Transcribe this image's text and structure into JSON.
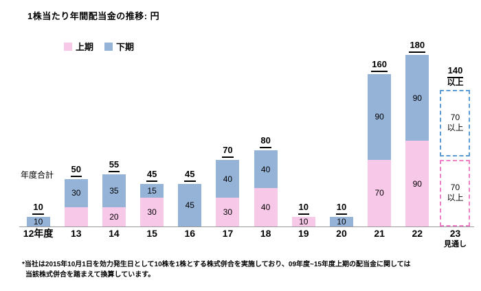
{
  "title": "1株当たり年間配当金の推移: 円",
  "legend": {
    "first_half": "上期",
    "second_half": "下期"
  },
  "y_total_label": "年度合計",
  "colors": {
    "first_half_fill": "#f8c8e8",
    "second_half_fill": "#95b3d7",
    "forecast_second_half_border": "#5b9bd5",
    "forecast_first_half_border": "#ee7ec6",
    "axis_line": "#9a9a9a"
  },
  "footnote": {
    "line1": "*当社は2015年10月1日を効力発生日として10株を1株とする株式併合を実施しており、09年度~15年度上期の配当金に関しては",
    "line2": "当該株式併合を踏まえて換算しています。"
  },
  "chart_data": {
    "type": "bar",
    "stacked": true,
    "title": "1株当たり年間配当金の推移: 円",
    "unit": "円",
    "ylim": [
      0,
      185
    ],
    "grid": false,
    "legend_position": "top-left",
    "categories": [
      "12年度",
      "13",
      "14",
      "15",
      "16",
      "17",
      "18",
      "19",
      "20",
      "21",
      "22",
      "23"
    ],
    "series": [
      {
        "name": "上期",
        "values": [
          0,
          20,
          20,
          30,
          0,
          30,
          40,
          10,
          0,
          70,
          90,
          70
        ]
      },
      {
        "name": "下期",
        "values": [
          10,
          30,
          35,
          15,
          45,
          40,
          40,
          0,
          10,
          90,
          90,
          70
        ]
      }
    ],
    "totals": [
      "10",
      "50",
      "55",
      "45",
      "45",
      "70",
      "80",
      "10",
      "10",
      "160",
      "180",
      "140以上"
    ],
    "forecast_index": 11,
    "bars": [
      {
        "category": "12年度",
        "total": "10",
        "first_half": 0,
        "second_half": 10,
        "first_label": "",
        "second_label": "10"
      },
      {
        "category": "13",
        "total": "50",
        "first_half": 20,
        "second_half": 30,
        "first_label": "",
        "second_label": "30"
      },
      {
        "category": "14",
        "total": "55",
        "first_half": 20,
        "second_half": 35,
        "first_label": "20",
        "second_label": "35"
      },
      {
        "category": "15",
        "total": "45",
        "first_half": 30,
        "second_half": 15,
        "first_label": "30",
        "second_label": "15"
      },
      {
        "category": "16",
        "total": "45",
        "first_half": 0,
        "second_half": 45,
        "first_label": "",
        "second_label": "45"
      },
      {
        "category": "17",
        "total": "70",
        "first_half": 30,
        "second_half": 40,
        "first_label": "30",
        "second_label": "40"
      },
      {
        "category": "18",
        "total": "80",
        "first_half": 40,
        "second_half": 40,
        "first_label": "40",
        "second_label": "40"
      },
      {
        "category": "19",
        "total": "10",
        "first_half": 10,
        "second_half": 0,
        "first_label": "10",
        "second_label": ""
      },
      {
        "category": "20",
        "total": "10",
        "first_half": 0,
        "second_half": 10,
        "first_label": "",
        "second_label": "10"
      },
      {
        "category": "21",
        "total": "160",
        "first_half": 70,
        "second_half": 90,
        "first_label": "70",
        "second_label": "90"
      },
      {
        "category": "22",
        "total": "180",
        "first_half": 90,
        "second_half": 90,
        "first_label": "90",
        "second_label": "90"
      },
      {
        "category": "23",
        "sub_label": "見通し",
        "forecast": true,
        "total": "140",
        "total_suffix": "以上",
        "first_half": 70,
        "second_half": 70,
        "first_label": "70",
        "first_suffix": "以上",
        "second_label": "70",
        "second_suffix": "以上"
      }
    ]
  }
}
